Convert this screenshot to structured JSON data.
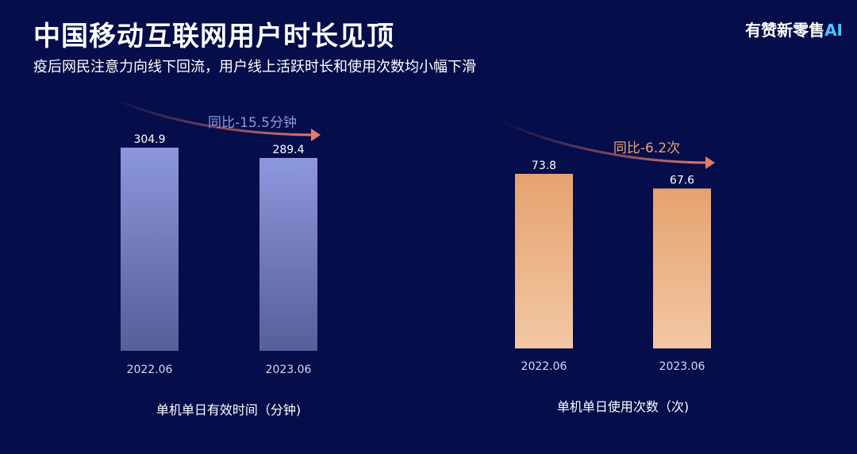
{
  "header": {
    "title": "中国移动互联网用户时长见顶",
    "subtitle": "疫后网民注意力向线下回流，用户线上活跃时长和使用次数均小幅下滑",
    "brand": "有赞新零售",
    "brand_ai": "AI"
  },
  "chart_data": [
    {
      "type": "bar",
      "categories": [
        "2022.06",
        "2023.06"
      ],
      "values": [
        304.9,
        289.4
      ],
      "value_labels": [
        "304.9",
        "289.4"
      ],
      "xlabel": "单机单日有效时间（分钟)",
      "annotation": "同比-15.5分钟",
      "color": "#8b93d8",
      "ylim": [
        0,
        304.9
      ]
    },
    {
      "type": "bar",
      "categories": [
        "2022.06",
        "2023.06"
      ],
      "values": [
        73.8,
        67.6
      ],
      "value_labels": [
        "73.8",
        "67.6"
      ],
      "xlabel": "单机单日使用次数（次)",
      "annotation": "同比-6.2次",
      "color": "#eaa476",
      "ylim": [
        0,
        73.8
      ]
    }
  ]
}
